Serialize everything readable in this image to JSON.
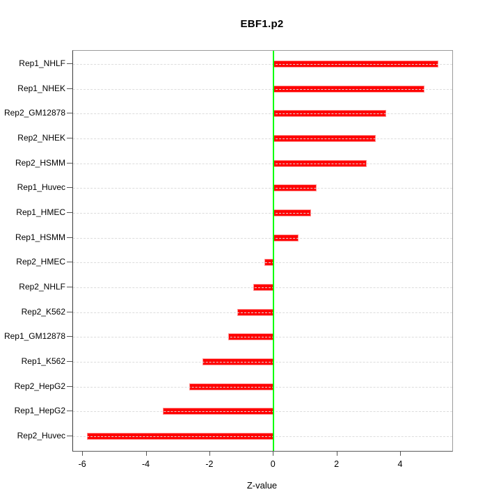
{
  "chart_data": {
    "type": "bar",
    "orientation": "horizontal",
    "title": "EBF1.p2",
    "xlabel": "Z-value",
    "xlim": [
      -6.31,
      5.62
    ],
    "xticks": [
      -6,
      -4,
      -2,
      0,
      2,
      4
    ],
    "grid": true,
    "categories": [
      "Rep1_NHLF",
      "Rep1_NHEK",
      "Rep2_GM12878",
      "Rep2_NHEK",
      "Rep2_HSMM",
      "Rep1_Huvec",
      "Rep1_HMEC",
      "Rep1_HSMM",
      "Rep2_HMEC",
      "Rep2_NHLF",
      "Rep2_K562",
      "Rep1_GM12878",
      "Rep1_K562",
      "Rep2_HepG2",
      "Rep1_HepG2",
      "Rep2_Huvec"
    ],
    "values": [
      5.18,
      4.75,
      3.54,
      3.22,
      2.93,
      1.36,
      1.17,
      0.79,
      -0.28,
      -0.64,
      -1.14,
      -1.42,
      -2.24,
      -2.66,
      -3.48,
      -5.88
    ],
    "colors": {
      "bar_fill": "#ff0000",
      "bar_border": "#ff9090",
      "zero_line": "#00ff00",
      "gridline": "#dcdcdc",
      "axis_box": "#5a5a5a",
      "text": "#000000",
      "background": "#ffffff"
    }
  }
}
